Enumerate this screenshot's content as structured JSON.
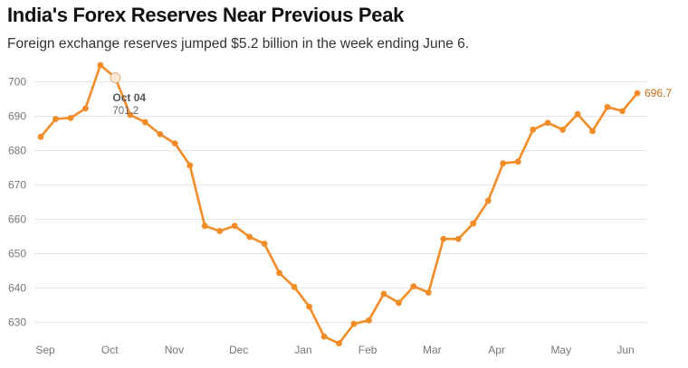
{
  "chart_data": {
    "type": "line",
    "title": "India's Forex Reserves Near Previous Peak",
    "subtitle": "Foreign exchange reserves jumped $5.2 billion in the week ending June 6.",
    "xlabel": "",
    "ylabel": "",
    "ylim": [
      622,
      707
    ],
    "yticks": [
      630,
      640,
      650,
      660,
      670,
      680,
      690,
      700
    ],
    "xtick_labels": [
      "Sep",
      "Oct",
      "Nov",
      "Dec",
      "Jan",
      "Feb",
      "Mar",
      "Apr",
      "May",
      "Jun"
    ],
    "grid": true,
    "legend": "none",
    "colors": {
      "line": "#f28c28",
      "end_label": "#c86a10"
    },
    "series": [
      {
        "values": [
          684,
          689.2,
          689.5,
          692.3,
          704.9,
          701.2,
          690.4,
          688.3,
          684.8,
          682.1,
          675.7,
          658.1,
          656.6,
          658.1,
          654.9,
          652.9,
          644.4,
          640.3,
          634.6,
          625.9,
          623.9,
          629.6,
          630.6,
          638.3,
          635.7,
          640.5,
          638.7,
          654.3,
          654.3,
          658.8,
          665.4,
          676.3,
          676.8,
          686.1,
          688.1,
          686.1,
          690.6,
          685.7,
          692.7,
          691.5,
          696.7
        ]
      }
    ],
    "tooltip": {
      "date": "Oct 04",
      "value": "701.2",
      "point_index": 5
    },
    "end_label": "696.7"
  }
}
